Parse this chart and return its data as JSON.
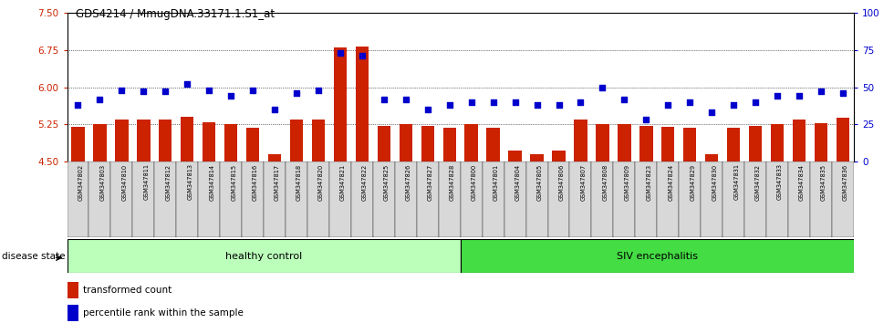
{
  "title": "GDS4214 / MmugDNA.33171.1.S1_at",
  "samples": [
    "GSM347802",
    "GSM347803",
    "GSM347810",
    "GSM347811",
    "GSM347812",
    "GSM347813",
    "GSM347814",
    "GSM347815",
    "GSM347816",
    "GSM347817",
    "GSM347818",
    "GSM347820",
    "GSM347821",
    "GSM347822",
    "GSM347825",
    "GSM347826",
    "GSM347827",
    "GSM347828",
    "GSM347800",
    "GSM347801",
    "GSM347804",
    "GSM347805",
    "GSM347806",
    "GSM347807",
    "GSM347808",
    "GSM347809",
    "GSM347823",
    "GSM347824",
    "GSM347829",
    "GSM347830",
    "GSM347831",
    "GSM347832",
    "GSM347833",
    "GSM347834",
    "GSM347835",
    "GSM347836"
  ],
  "bar_values": [
    5.2,
    5.25,
    5.35,
    5.35,
    5.35,
    5.4,
    5.3,
    5.25,
    5.19,
    4.65,
    5.35,
    5.35,
    6.8,
    6.82,
    5.22,
    5.25,
    5.22,
    5.19,
    5.25,
    5.18,
    4.72,
    4.65,
    4.73,
    5.35,
    5.25,
    5.25,
    5.22,
    5.2,
    5.19,
    4.65,
    5.19,
    5.21,
    5.25,
    5.35,
    5.28,
    5.38
  ],
  "dot_values": [
    38,
    42,
    48,
    47,
    47,
    52,
    48,
    44,
    48,
    35,
    46,
    48,
    73,
    71,
    42,
    42,
    35,
    38,
    40,
    40,
    40,
    38,
    38,
    40,
    50,
    42,
    28,
    38,
    40,
    33,
    38,
    40,
    44,
    44,
    47,
    46
  ],
  "healthy_count": 18,
  "ylim_left": [
    4.5,
    7.5
  ],
  "ylim_right": [
    0,
    100
  ],
  "yticks_left": [
    4.5,
    5.25,
    6.0,
    6.75,
    7.5
  ],
  "yticks_right": [
    0,
    25,
    50,
    75,
    100
  ],
  "bar_color": "#cc2200",
  "dot_color": "#0000cc",
  "healthy_color": "#bbffbb",
  "siv_color": "#44dd44",
  "grid_color": "black",
  "left_label": "transformed count",
  "right_label": "percentile rank within the sample",
  "group1_label": "healthy control",
  "group2_label": "SIV encephalitis",
  "disease_state_label": "disease state"
}
